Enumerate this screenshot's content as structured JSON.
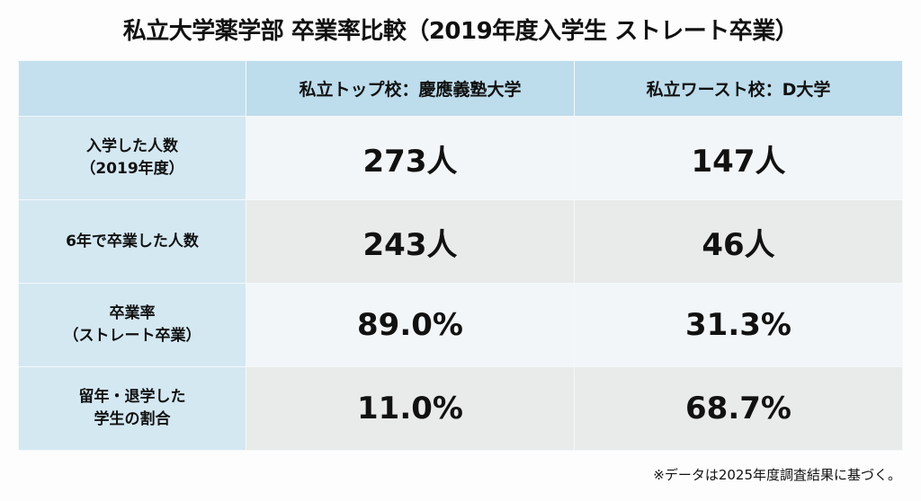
{
  "title": "私立大学薬学部 卒業率比較（2019年度入学生 ストレート卒業）",
  "table": {
    "headers": [
      "",
      "私立トップ校：慶應義塾大学",
      "私立ワースト校：D大学"
    ],
    "rows": [
      {
        "label": [
          "入学した人数",
          "（2019年度）"
        ],
        "values": [
          "273人",
          "147人"
        ]
      },
      {
        "label": [
          "6年で卒業した人数"
        ],
        "values": [
          "243人",
          "46人"
        ]
      },
      {
        "label": [
          "卒業率",
          "（ストレート卒業）"
        ],
        "values": [
          "89.0%",
          "31.3%"
        ]
      },
      {
        "label": [
          "留年・退学した",
          "学生の割合"
        ],
        "values": [
          "11.0%",
          "68.7%"
        ]
      }
    ]
  },
  "footnote": "※データは2025年度調査結果に基づく。"
}
